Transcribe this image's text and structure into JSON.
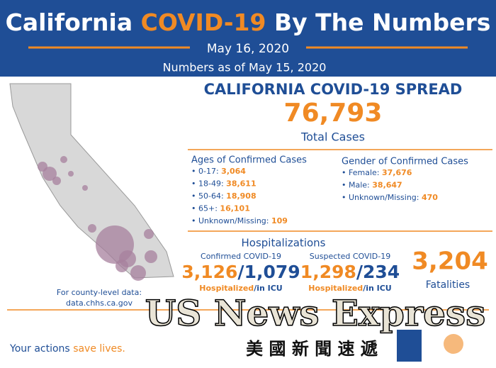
{
  "header": {
    "title_start": "California",
    "title_highlight": "COVID-19",
    "title_end": "By The Numbers",
    "date": "May 16, 2020",
    "as_of": "Numbers as of May 15, 2020"
  },
  "spread": {
    "title": "CALIFORNIA COVID-19 SPREAD",
    "total": "76,793",
    "total_label": "Total Cases"
  },
  "ages": {
    "title": "Ages of Confirmed Cases",
    "items": [
      {
        "label": "0-17:",
        "value": "3,064"
      },
      {
        "label": "18-49:",
        "value": "38,611"
      },
      {
        "label": "50-64:",
        "value": "18,908"
      },
      {
        "label": "65+:",
        "value": "16,101"
      },
      {
        "label": "Unknown/Missing:",
        "value": "109"
      }
    ]
  },
  "gender": {
    "title": "Gender of Confirmed Cases",
    "items": [
      {
        "label": "Female:",
        "value": "37,676"
      },
      {
        "label": "Male:",
        "value": "38,647"
      },
      {
        "label": "Unknown/Missing:",
        "value": "470"
      }
    ]
  },
  "hospitalizations": {
    "title": "Hospitalizations",
    "separator": "/",
    "hosp_label": "Hospitalized",
    "icu_label": "/in ICU",
    "confirmed": {
      "title": "Confirmed COVID-19",
      "hospitalized": "3,126",
      "icu": "1,079"
    },
    "suspected": {
      "title": "Suspected COVID-19",
      "hospitalized": "1,298",
      "icu": "234"
    }
  },
  "fatalities": {
    "value": "3,204",
    "label": "Fatalities"
  },
  "county": {
    "line1": "For county-level data:",
    "line2": "data.chhs.ca.gov"
  },
  "footer": {
    "start": "Your actions",
    "highlight": "save lives."
  },
  "watermark": {
    "english": "US News Express",
    "chinese": "美 國 新 聞 速 遞"
  }
}
